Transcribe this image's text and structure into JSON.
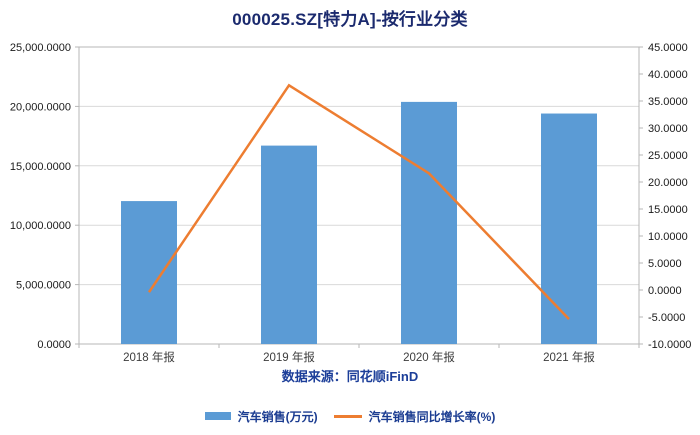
{
  "chart_data": {
    "type": "bar+line",
    "title": "000025.SZ[特力A]-按行业分类",
    "source_note": "数据来源：同花顺iFinD",
    "categories": [
      "2018 年报",
      "2019 年报",
      "2020 年报",
      "2021 年报"
    ],
    "series": [
      {
        "name": "汽车销售(万元)",
        "type": "bar",
        "axis": "left",
        "color": "#5b9bd5",
        "values": [
          12030,
          16700,
          20380,
          19400
        ]
      },
      {
        "name": "汽车销售同比增长率(%)",
        "type": "line",
        "axis": "right",
        "color": "#ed7d31",
        "values": [
          -0.4,
          37.9,
          21.6,
          -5.4
        ]
      }
    ],
    "y_left": {
      "min": 0,
      "max": 25000,
      "step": 5000,
      "tick_labels": [
        "0.0000",
        "5,000.0000",
        "10,000.0000",
        "15,000.0000",
        "20,000.0000",
        "25,000.0000"
      ]
    },
    "y_right": {
      "min": -10,
      "max": 45,
      "step": 5,
      "tick_labels": [
        "-10.0000",
        "-5.0000",
        "0.0000",
        "5.0000",
        "10.0000",
        "15.0000",
        "20.0000",
        "25.0000",
        "30.0000",
        "35.0000",
        "40.0000",
        "45.0000"
      ]
    },
    "grid": true,
    "legend_position": "bottom",
    "frame_color": "#b7b7b7",
    "gridline_color": "#d9d9d9"
  }
}
